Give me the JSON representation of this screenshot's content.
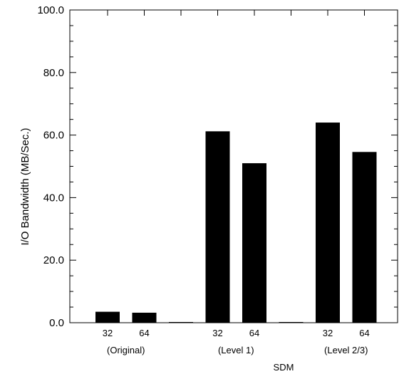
{
  "chart_data": {
    "type": "bar",
    "title": "",
    "xlabel": "SDM",
    "ylabel": "I/O Bandwidth (MB/Sec.)",
    "ylim": [
      0,
      100
    ],
    "yticks": [
      "0.0",
      "20.0",
      "40.0",
      "60.0",
      "80.0",
      "100.0"
    ],
    "categories": [
      "32",
      "64",
      "",
      "32",
      "64",
      "",
      "32",
      "64"
    ],
    "values": [
      3.5,
      3.2,
      0.2,
      61.2,
      51.0,
      0.2,
      64.0,
      54.6
    ],
    "groups": [
      "(Original)",
      "(Level 1)",
      "(Level 2/3)"
    ],
    "bar_color": "#000000",
    "grid": false
  }
}
